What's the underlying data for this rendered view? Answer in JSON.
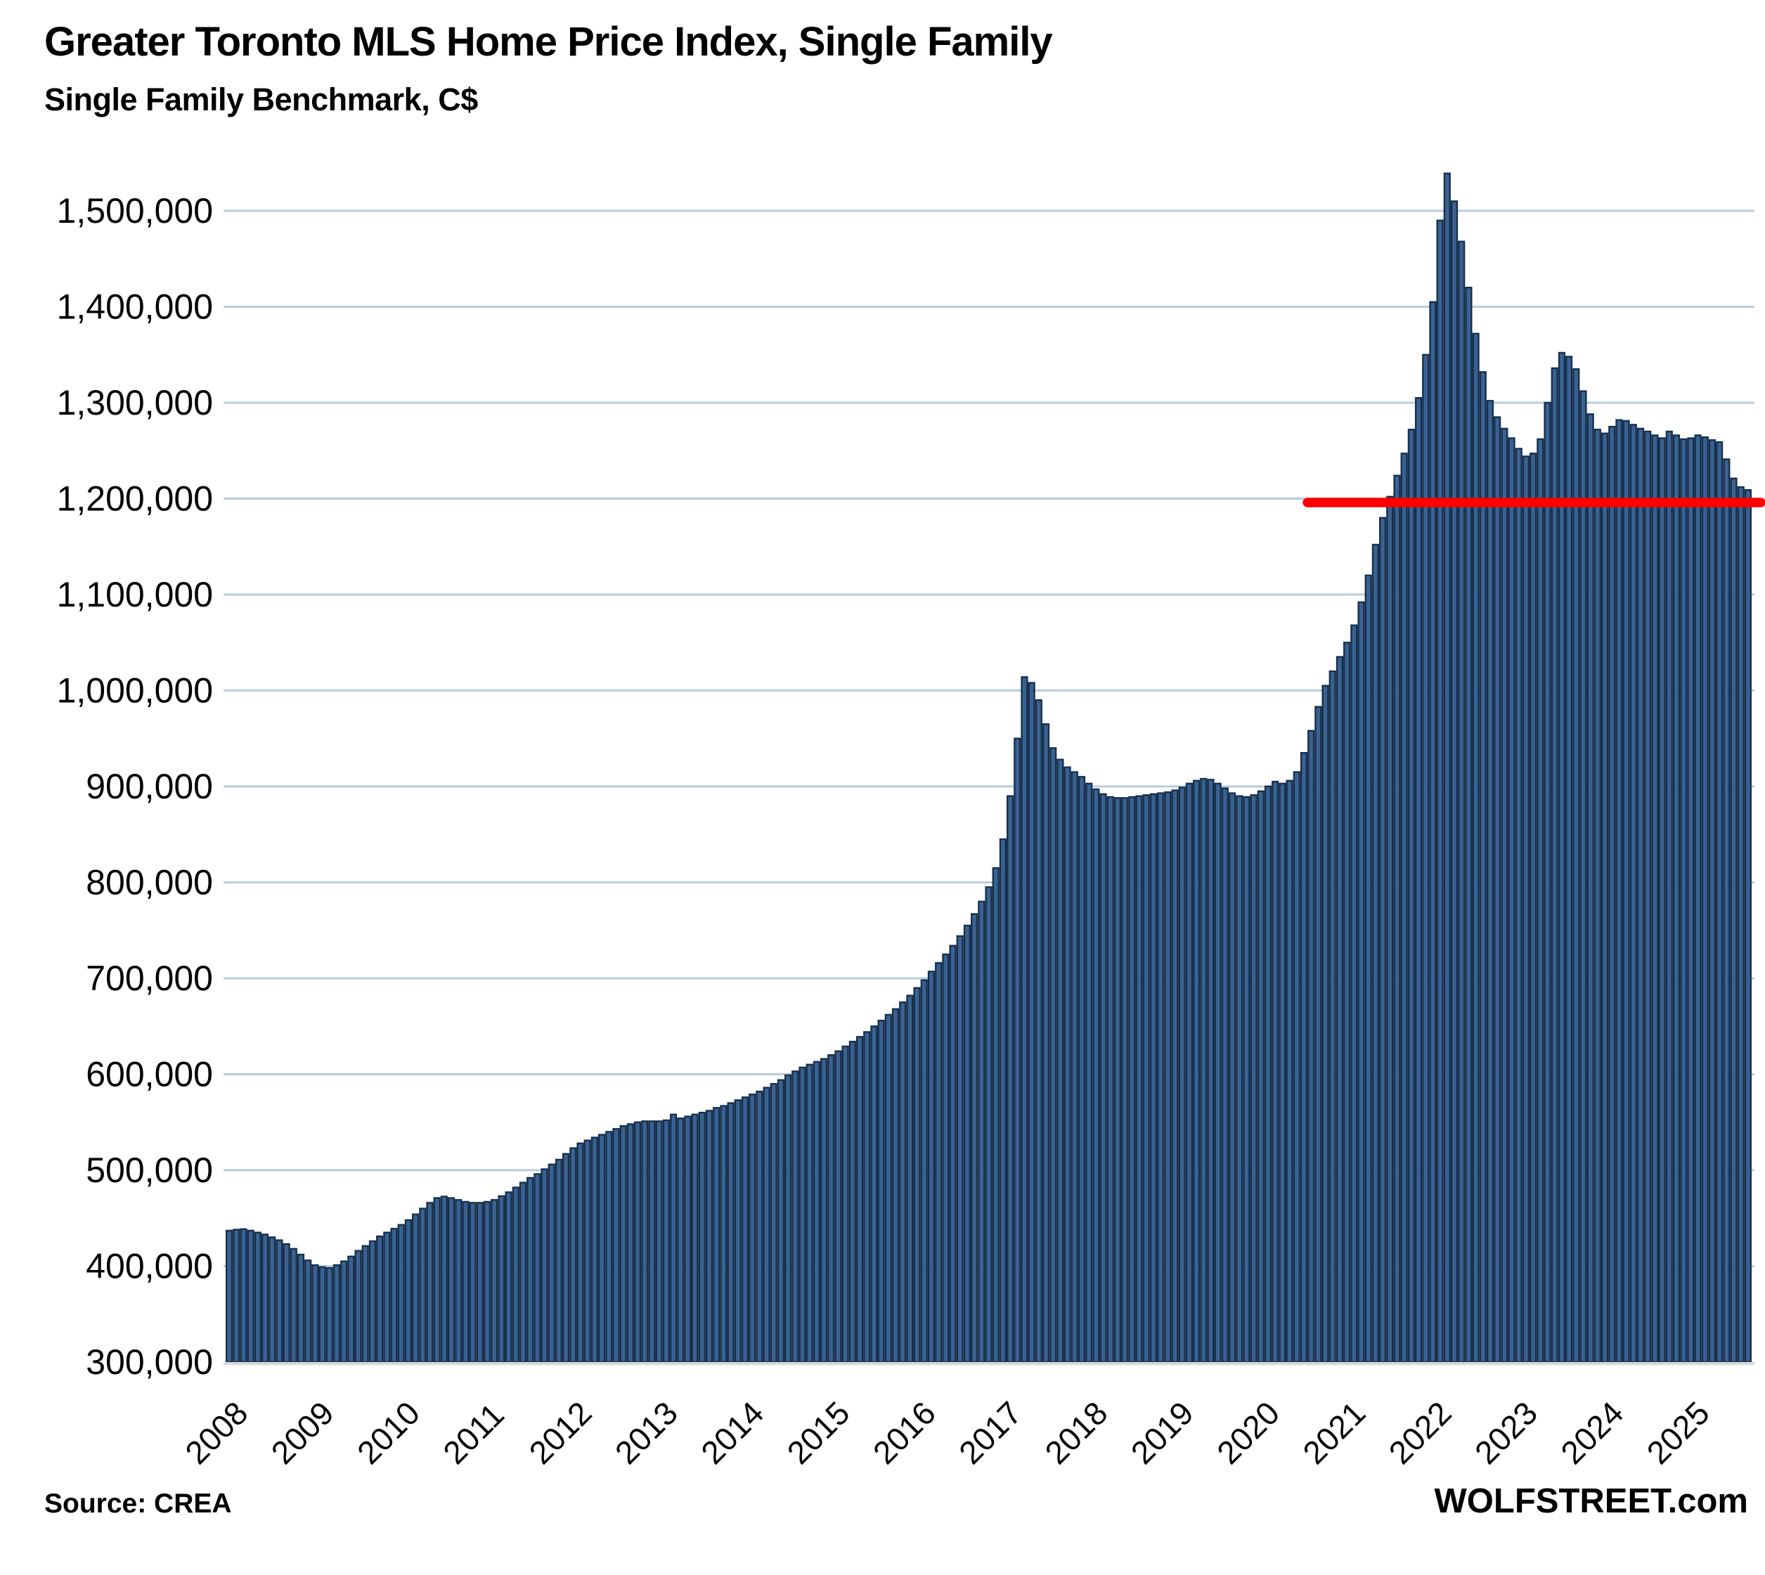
{
  "header": {
    "title": "Greater Toronto MLS Home Price Index, Single Family",
    "subtitle": "Single Family Benchmark, C$"
  },
  "footer": {
    "source": "Source: CREA",
    "watermark": "WOLFSTREET.com"
  },
  "chart_data": {
    "type": "bar",
    "title": "Greater Toronto MLS Home Price Index, Single Family",
    "subtitle": "Single Family Benchmark, C$",
    "unit": "C$",
    "frequency": "monthly",
    "start_month": "2008-01",
    "end_month": "2025-09",
    "x_tick_labels": [
      "2008",
      "2009",
      "2010",
      "2011",
      "2012",
      "2013",
      "2014",
      "2015",
      "2016",
      "2017",
      "2018",
      "2019",
      "2020",
      "2021",
      "2022",
      "2023",
      "2024",
      "2025"
    ],
    "y_ticks": [
      300000,
      400000,
      500000,
      600000,
      700000,
      800000,
      900000,
      1000000,
      1100000,
      1200000,
      1300000,
      1400000,
      1500000
    ],
    "y_tick_labels": [
      "300,000",
      "400,000",
      "500,000",
      "600,000",
      "700,000",
      "800,000",
      "900,000",
      "1,000,000",
      "1,100,000",
      "1,200,000",
      "1,300,000",
      "1,400,000",
      "1,500,000"
    ],
    "ylim": [
      300000,
      1560000
    ],
    "grid": "horizontal",
    "legend": "none",
    "bar_fill_color": "#3A6291",
    "bar_border_color": "#17304D",
    "gridline_color": "#B7CCE2",
    "axis_line_color": "#D9D9D9",
    "reference_line": {
      "value": 1196000,
      "color": "#FF0000",
      "starts_at_month": "2020-08",
      "start_month_index": 151
    },
    "values": [
      437000,
      438000,
      438500,
      437000,
      435000,
      433000,
      430000,
      427000,
      423000,
      418000,
      412000,
      406000,
      401000,
      399000,
      398000,
      401000,
      405000,
      410000,
      416000,
      421000,
      426000,
      431000,
      435000,
      439000,
      443000,
      448000,
      454000,
      460000,
      466000,
      471000,
      472500,
      471000,
      469000,
      467000,
      466000,
      466000,
      467000,
      469000,
      473000,
      477000,
      482000,
      487000,
      492000,
      496000,
      501000,
      506000,
      511000,
      517000,
      523000,
      528000,
      531000,
      534000,
      537000,
      540000,
      543000,
      546000,
      548000,
      550000,
      551000,
      551000,
      551000,
      552000,
      558000,
      554000,
      556000,
      558000,
      560000,
      562000,
      565000,
      567000,
      570000,
      573000,
      576000,
      579000,
      582000,
      586000,
      590000,
      594000,
      599000,
      603000,
      607000,
      610000,
      613000,
      616000,
      620000,
      624000,
      629000,
      634000,
      639000,
      644000,
      650000,
      656000,
      662000,
      668000,
      675000,
      682000,
      690000,
      698000,
      707000,
      716000,
      725000,
      734000,
      744000,
      755000,
      767000,
      780000,
      795000,
      815000,
      845000,
      890000,
      950000,
      1014000,
      1008000,
      990000,
      965000,
      940000,
      928000,
      920000,
      915000,
      910000,
      903000,
      897000,
      892000,
      889000,
      888000,
      888000,
      889000,
      890000,
      891000,
      892000,
      893000,
      894000,
      896000,
      899000,
      903000,
      906000,
      908000,
      907000,
      903000,
      898000,
      893000,
      890000,
      889000,
      891000,
      895000,
      900000,
      905000,
      903000,
      906000,
      915000,
      935000,
      958000,
      983000,
      1005000,
      1020000,
      1035000,
      1050000,
      1068000,
      1092000,
      1120000,
      1152000,
      1180000,
      1202000,
      1224000,
      1247000,
      1272000,
      1305000,
      1350000,
      1405000,
      1490000,
      1539000,
      1510000,
      1468000,
      1420000,
      1372000,
      1332000,
      1302000,
      1285000,
      1273000,
      1263000,
      1252000,
      1244000,
      1247000,
      1262000,
      1300000,
      1336000,
      1352000,
      1348000,
      1335000,
      1312000,
      1288000,
      1272000,
      1268000,
      1275000,
      1282000,
      1281000,
      1277000,
      1273000,
      1270000,
      1266000,
      1263000,
      1270000,
      1266000,
      1262000,
      1263000,
      1266000,
      1264000,
      1261000,
      1259000,
      1241000,
      1221000,
      1212000,
      1209000
    ]
  }
}
